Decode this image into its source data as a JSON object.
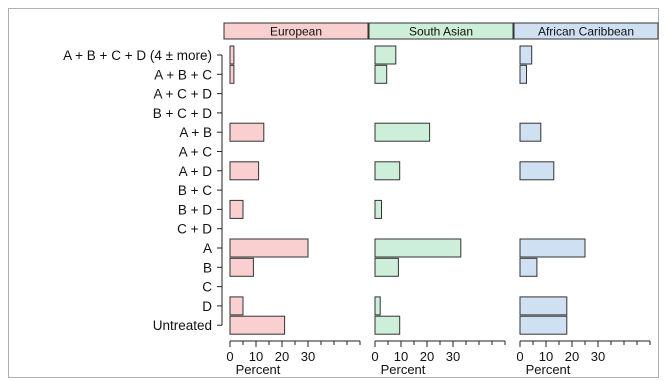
{
  "chart_data": {
    "type": "bar",
    "orientation": "horizontal",
    "panels": [
      "European",
      "South Asian",
      "African Caribbean"
    ],
    "panel_colors": [
      "#f9cfcf",
      "#cdeed9",
      "#cfe0f3"
    ],
    "categories": [
      "A + B + C + D (4 ± more)",
      "A + B + C",
      "A + C + D",
      "B + C + D",
      "A + B",
      "A + C",
      "A + D",
      "B + C",
      "B + D",
      "C + D",
      "A",
      "B",
      "C",
      "D",
      "Untreated"
    ],
    "series": [
      {
        "name": "European",
        "values": [
          1.5,
          1.5,
          0,
          0,
          13,
          0,
          11,
          0,
          5,
          0,
          30,
          9,
          0,
          5,
          21
        ]
      },
      {
        "name": "South Asian",
        "values": [
          8,
          4.5,
          0,
          0,
          21,
          0,
          9.5,
          0,
          2.5,
          0,
          33,
          9,
          0,
          2,
          9.5
        ]
      },
      {
        "name": "African Caribbean",
        "values": [
          4.5,
          2.5,
          0,
          0,
          8,
          0,
          13,
          0,
          0,
          0,
          25,
          6.5,
          0,
          18,
          18
        ]
      }
    ],
    "xlabel": "Percent",
    "xticks": [
      0,
      10,
      20,
      30
    ],
    "xlim": [
      0,
      50
    ]
  }
}
